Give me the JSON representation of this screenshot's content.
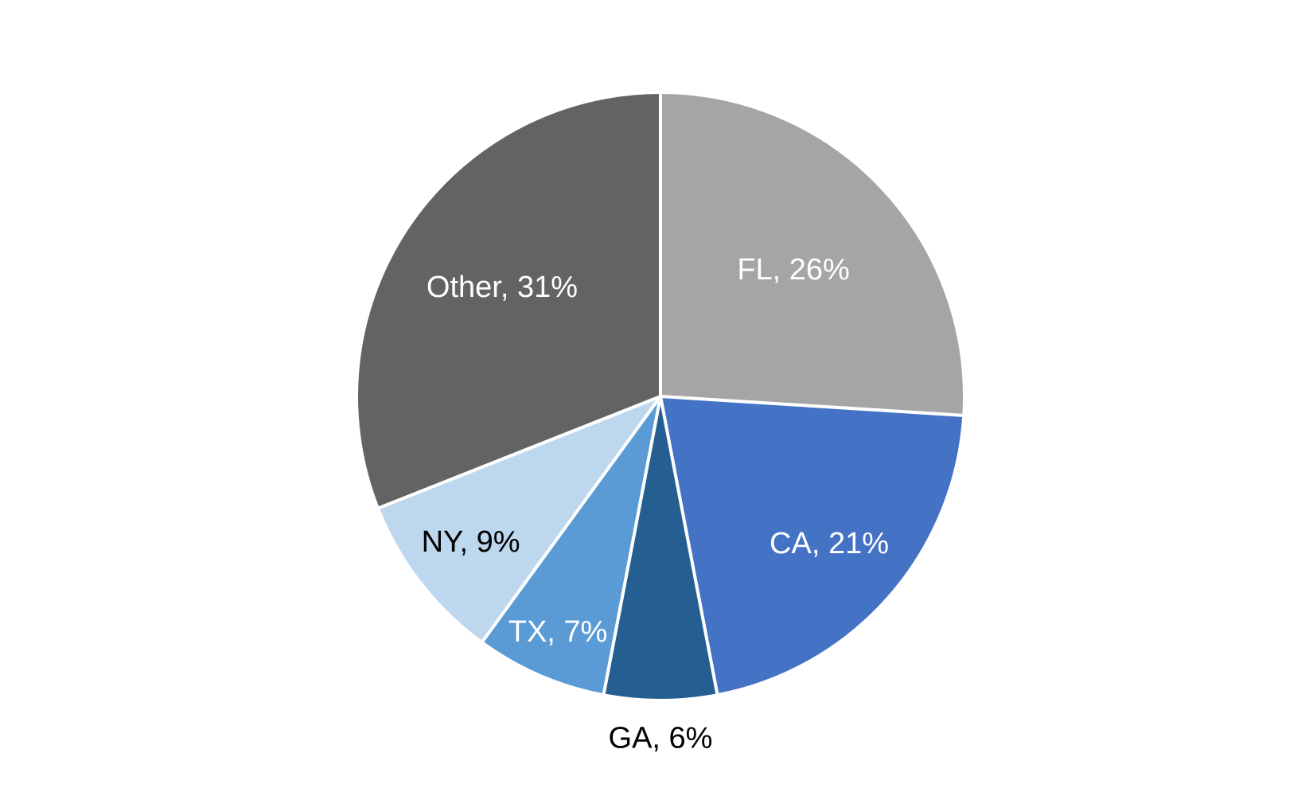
{
  "chart_data": {
    "type": "pie",
    "values": [
      26,
      21,
      6,
      7,
      9,
      31
    ],
    "value_labels": [
      "FL, 26%",
      "CA, 21%",
      "GA, 6%",
      "TX, 7%",
      "NY, 9%",
      "Other, 31%"
    ],
    "colors": [
      "#a5a5a5",
      "#4472c4",
      "#255e91",
      "#5b9bd5",
      "#bdd7ee",
      "#636363"
    ],
    "label_colors": [
      "#ffffff",
      "#ffffff",
      "#000000",
      "#ffffff",
      "#000000",
      "#ffffff"
    ]
  }
}
